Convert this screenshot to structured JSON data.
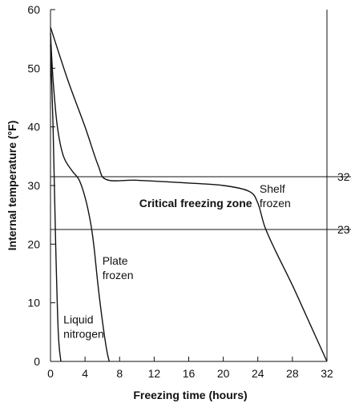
{
  "chart_data": {
    "type": "line",
    "xlabel": "Freezing time (hours)",
    "ylabel": "Internal temperature (°F)",
    "xlim": [
      0,
      32
    ],
    "ylim": [
      0,
      60
    ],
    "x_ticks": [
      "0",
      "4",
      "8",
      "12",
      "16",
      "20",
      "24",
      "28",
      "32"
    ],
    "y_ticks": [
      "0",
      "10",
      "20",
      "30",
      "40",
      "50",
      "60"
    ],
    "reference_lines": [
      {
        "y": 31.5,
        "label": "32"
      },
      {
        "y": 22.5,
        "label": "23"
      }
    ],
    "zone_label": "Critical freezing zone",
    "series": [
      {
        "name": "Liquid nitrogen",
        "x": [
          0,
          0.3,
          0.6,
          0.9,
          1.2
        ],
        "y": [
          54,
          40,
          20,
          5,
          0
        ]
      },
      {
        "name": "Plate frozen",
        "x": [
          0,
          0.3,
          0.8,
          1.5,
          2.5,
          3.3,
          4.0,
          4.6,
          5.0,
          5.5,
          6.0,
          6.5,
          6.8
        ],
        "y": [
          56,
          48,
          40,
          35,
          32.5,
          31,
          28,
          24,
          20,
          13,
          7,
          2,
          0
        ]
      },
      {
        "name": "Shelf frozen",
        "x": [
          0,
          2,
          4,
          5.5,
          6.5,
          10,
          15,
          20,
          23,
          24,
          24.8,
          26,
          28,
          30,
          32
        ],
        "y": [
          57,
          48,
          40,
          33.5,
          31,
          30.9,
          30.5,
          30,
          29,
          27,
          23,
          19,
          13,
          6.5,
          0
        ]
      }
    ],
    "annotations": [
      {
        "text": [
          "Liquid",
          "nitrogen"
        ],
        "series": "Liquid nitrogen"
      },
      {
        "text": [
          "Plate",
          "frozen"
        ],
        "series": "Plate frozen"
      },
      {
        "text": [
          "Shelf",
          "frozen"
        ],
        "series": "Shelf frozen"
      }
    ]
  }
}
